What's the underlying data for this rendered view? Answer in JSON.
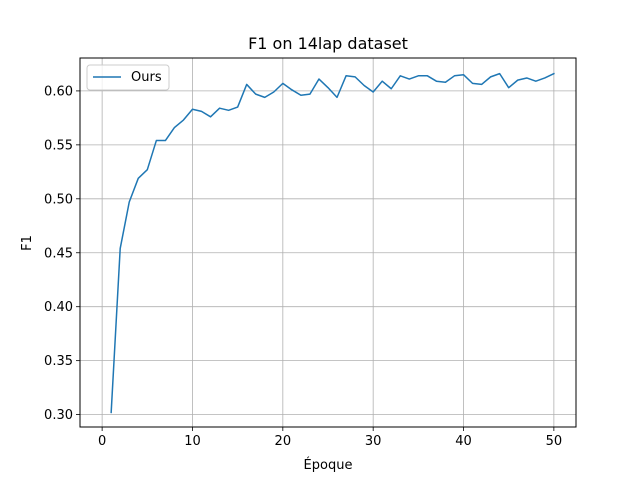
{
  "chart_data": {
    "type": "line",
    "title": "F1 on 14lap dataset",
    "xlabel": "Époque",
    "ylabel": "F1",
    "xlim": [
      -2.45,
      52.45
    ],
    "ylim": [
      0.2885,
      0.6305
    ],
    "xticks": [
      0,
      10,
      20,
      30,
      40,
      50
    ],
    "yticks": [
      0.3,
      0.35,
      0.4,
      0.45,
      0.5,
      0.55,
      0.6
    ],
    "grid": true,
    "legend_position": "upper-left",
    "series": [
      {
        "name": "Ours",
        "color": "#1f77b4",
        "x": [
          1,
          2,
          3,
          4,
          5,
          6,
          7,
          8,
          9,
          10,
          11,
          12,
          13,
          14,
          15,
          16,
          17,
          18,
          19,
          20,
          21,
          22,
          23,
          24,
          25,
          26,
          27,
          28,
          29,
          30,
          31,
          32,
          33,
          34,
          35,
          36,
          37,
          38,
          39,
          40,
          41,
          42,
          43,
          44,
          45,
          46,
          47,
          48,
          49,
          50
        ],
        "y": [
          0.302,
          0.454,
          0.497,
          0.519,
          0.527,
          0.554,
          0.554,
          0.566,
          0.573,
          0.583,
          0.581,
          0.576,
          0.584,
          0.582,
          0.585,
          0.606,
          0.597,
          0.594,
          0.599,
          0.607,
          0.601,
          0.596,
          0.597,
          0.611,
          0.603,
          0.594,
          0.614,
          0.613,
          0.605,
          0.599,
          0.609,
          0.602,
          0.614,
          0.611,
          0.614,
          0.614,
          0.609,
          0.608,
          0.614,
          0.615,
          0.607,
          0.606,
          0.613,
          0.616,
          0.603,
          0.61,
          0.612,
          0.609,
          0.612,
          0.616
        ]
      }
    ]
  }
}
